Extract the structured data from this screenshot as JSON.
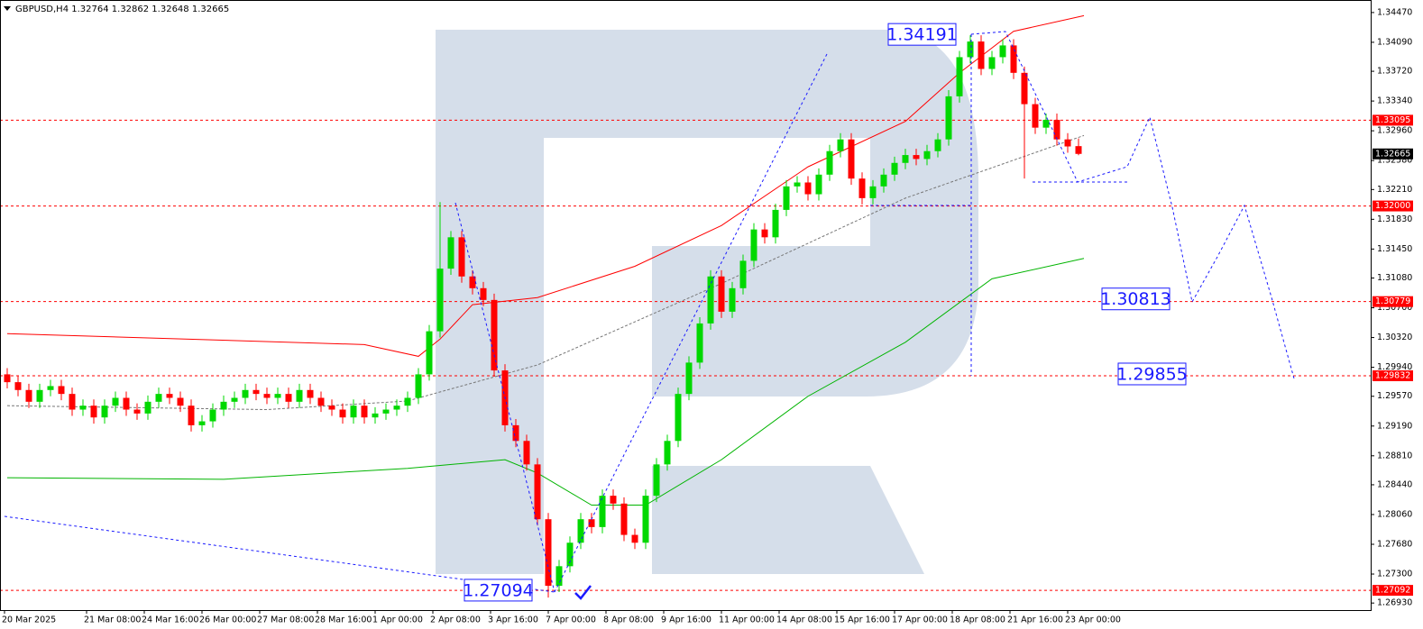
{
  "chart_data": {
    "type": "candlestick",
    "title": "GBPUSD,H4  1.32764 1.32862 1.32648 1.32665",
    "up_color": "#00d800",
    "down_color": "#ff0000",
    "ylim": [
      1.2684,
      1.3463
    ],
    "yticks": [
      {
        "value": 1.3447,
        "label": "1.34470"
      },
      {
        "value": 1.3409,
        "label": "1.34090"
      },
      {
        "value": 1.3372,
        "label": "1.33720"
      },
      {
        "value": 1.3334,
        "label": "1.33340"
      },
      {
        "value": 1.3296,
        "label": "1.32960"
      },
      {
        "value": 1.3258,
        "label": "1.32580"
      },
      {
        "value": 1.3221,
        "label": "1.32210"
      },
      {
        "value": 1.3183,
        "label": "1.31830"
      },
      {
        "value": 1.3145,
        "label": "1.31450"
      },
      {
        "value": 1.3108,
        "label": "1.31080"
      },
      {
        "value": 1.307,
        "label": "1.30700"
      },
      {
        "value": 1.3032,
        "label": "1.30320"
      },
      {
        "value": 1.2994,
        "label": "1.29940"
      },
      {
        "value": 1.2957,
        "label": "1.29570"
      },
      {
        "value": 1.2919,
        "label": "1.29190"
      },
      {
        "value": 1.2881,
        "label": "1.28810"
      },
      {
        "value": 1.2844,
        "label": "1.28440"
      },
      {
        "value": 1.2806,
        "label": "1.28060"
      },
      {
        "value": 1.2768,
        "label": "1.27680"
      },
      {
        "value": 1.273,
        "label": "1.27300"
      },
      {
        "value": 1.2693,
        "label": "1.26930"
      }
    ],
    "time_labels": [
      "20 Mar 2025",
      "21 Mar 08:00",
      "24 Mar 16:00",
      "26 Mar 00:00",
      "27 Mar 08:00",
      "28 Mar 16:00",
      "1 Apr 00:00",
      "2 Apr 08:00",
      "3 Apr 16:00",
      "7 Apr 00:00",
      "8 Apr 08:00",
      "9 Apr 16:00",
      "11 Apr 00:00",
      "14 Apr 08:00",
      "15 Apr 16:00",
      "17 Apr 00:00",
      "18 Apr 08:00",
      "21 Apr 16:00",
      "23 Apr 00:00"
    ],
    "open": [
      1.2985,
      1.2975,
      1.2965,
      1.295,
      1.2965,
      1.297,
      1.296,
      1.294,
      1.2945,
      1.293,
      1.2945,
      1.2955,
      1.294,
      1.2935,
      1.295,
      1.296,
      1.2955,
      1.2945,
      1.292,
      1.2925,
      1.294,
      1.295,
      1.2955,
      1.2965,
      1.296,
      1.2955,
      1.296,
      1.295,
      1.2965,
      1.2955,
      1.2945,
      1.294,
      1.293,
      1.2945,
      1.293,
      1.2935,
      1.294,
      1.2945,
      1.2955,
      1.2985,
      1.304,
      1.312,
      1.316,
      1.311,
      1.3095,
      1.308,
      1.299,
      1.292,
      1.29,
      1.287,
      1.28,
      1.2715,
      1.274,
      1.277,
      1.28,
      1.279,
      1.283,
      1.282,
      1.278,
      1.277,
      1.283,
      1.287,
      1.29,
      1.296,
      1.3,
      1.305,
      1.311,
      1.3065,
      1.3095,
      1.313,
      1.317,
      1.316,
      1.3195,
      1.3225,
      1.323,
      1.3215,
      1.324,
      1.327,
      1.3285,
      1.3235,
      1.321,
      1.3225,
      1.324,
      1.3255,
      1.3265,
      1.326,
      1.327,
      1.3285,
      1.334,
      1.339,
      1.341,
      1.3375,
      1.339,
      1.3405,
      1.337,
      1.333,
      1.33,
      1.331,
      1.3285,
      1.32764
    ],
    "high": [
      1.2993,
      1.2983,
      1.2973,
      1.2973,
      1.2978,
      1.2978,
      1.2968,
      1.2953,
      1.2953,
      1.2953,
      1.2963,
      1.2963,
      1.2948,
      1.2958,
      1.2968,
      1.2968,
      1.2963,
      1.2953,
      1.2933,
      1.2948,
      1.2958,
      1.2963,
      1.2973,
      1.2973,
      1.2968,
      1.2968,
      1.2968,
      1.2973,
      1.2973,
      1.2963,
      1.2953,
      1.2948,
      1.2953,
      1.2953,
      1.2943,
      1.2948,
      1.2953,
      1.2963,
      1.2993,
      1.3048,
      1.3205,
      1.3168,
      1.3168,
      1.3118,
      1.3103,
      1.3088,
      1.2998,
      1.2928,
      1.2908,
      1.2878,
      1.2808,
      1.2748,
      1.2778,
      1.2808,
      1.2808,
      1.2838,
      1.2838,
      1.2828,
      1.2788,
      1.2838,
      1.2878,
      1.2908,
      1.2968,
      1.3008,
      1.3058,
      1.3118,
      1.3118,
      1.3103,
      1.3138,
      1.3178,
      1.3178,
      1.3203,
      1.3233,
      1.3238,
      1.3238,
      1.3248,
      1.3278,
      1.3293,
      1.3293,
      1.3243,
      1.3233,
      1.3248,
      1.3263,
      1.3273,
      1.3273,
      1.3278,
      1.3293,
      1.3348,
      1.3398,
      1.3418,
      1.3418,
      1.3398,
      1.3413,
      1.3413,
      1.3378,
      1.3338,
      1.3318,
      1.3318,
      1.3293,
      1.32862
    ],
    "low": [
      1.2967,
      1.2957,
      1.2942,
      1.2942,
      1.2957,
      1.2952,
      1.2932,
      1.2932,
      1.2922,
      1.2922,
      1.2937,
      1.2932,
      1.2927,
      1.2927,
      1.2942,
      1.2947,
      1.2937,
      1.2912,
      1.2912,
      1.2917,
      1.2932,
      1.2942,
      1.2947,
      1.2952,
      1.2947,
      1.2947,
      1.2942,
      1.2942,
      1.2947,
      1.2937,
      1.2932,
      1.2922,
      1.2922,
      1.2922,
      1.2922,
      1.2927,
      1.2932,
      1.2937,
      1.2947,
      1.2977,
      1.3032,
      1.3112,
      1.3102,
      1.3087,
      1.3072,
      1.2982,
      1.2912,
      1.2892,
      1.2862,
      1.2792,
      1.27,
      1.2707,
      1.2732,
      1.2762,
      1.2782,
      1.2782,
      1.2812,
      1.2772,
      1.2762,
      1.2762,
      1.2822,
      1.2862,
      1.2892,
      1.2952,
      1.2992,
      1.3042,
      1.3057,
      1.3057,
      1.3087,
      1.3122,
      1.3152,
      1.3152,
      1.3187,
      1.3217,
      1.3207,
      1.3207,
      1.3232,
      1.3262,
      1.3227,
      1.3202,
      1.3202,
      1.3217,
      1.3232,
      1.3247,
      1.3252,
      1.3252,
      1.3262,
      1.3277,
      1.3332,
      1.3382,
      1.3367,
      1.3367,
      1.3382,
      1.3362,
      1.3235,
      1.3292,
      1.3292,
      1.3277,
      1.3268,
      1.32648
    ],
    "close": [
      1.2975,
      1.2965,
      1.295,
      1.2965,
      1.297,
      1.296,
      1.294,
      1.2945,
      1.293,
      1.2945,
      1.2955,
      1.294,
      1.2935,
      1.295,
      1.296,
      1.2955,
      1.2945,
      1.292,
      1.2925,
      1.294,
      1.295,
      1.2955,
      1.2965,
      1.296,
      1.2955,
      1.296,
      1.295,
      1.2965,
      1.2955,
      1.2945,
      1.294,
      1.293,
      1.2945,
      1.293,
      1.2935,
      1.294,
      1.2945,
      1.2955,
      1.2985,
      1.304,
      1.312,
      1.316,
      1.311,
      1.3095,
      1.308,
      1.299,
      1.292,
      1.29,
      1.287,
      1.28,
      1.2715,
      1.274,
      1.277,
      1.28,
      1.279,
      1.283,
      1.282,
      1.278,
      1.277,
      1.283,
      1.287,
      1.29,
      1.296,
      1.3,
      1.305,
      1.311,
      1.3065,
      1.3095,
      1.313,
      1.317,
      1.316,
      1.3195,
      1.3225,
      1.323,
      1.3215,
      1.324,
      1.327,
      1.3285,
      1.3235,
      1.321,
      1.3225,
      1.324,
      1.3255,
      1.3265,
      1.326,
      1.327,
      1.3285,
      1.334,
      1.339,
      1.341,
      1.3375,
      1.339,
      1.3405,
      1.337,
      1.333,
      1.33,
      1.331,
      1.3285,
      1.3276,
      1.32665
    ],
    "indicators": [
      {
        "color": "#ff0000",
        "dashed": false,
        "x": [
          0,
          33,
          38,
          40,
          43,
          49,
          58,
          66,
          74,
          83,
          88,
          93,
          99.5
        ],
        "values": [
          1.3037,
          1.3023,
          1.3008,
          1.303,
          1.3074,
          1.3083,
          1.3123,
          1.3175,
          1.325,
          1.3308,
          1.337,
          1.3423,
          1.3443
        ]
      },
      {
        "color": "#00b400",
        "dashed": false,
        "x": [
          0,
          20,
          37,
          46,
          49,
          54,
          59,
          66,
          74,
          83,
          91,
          99.5
        ],
        "values": [
          1.2853,
          1.2851,
          1.2865,
          1.2876,
          1.2859,
          1.2818,
          1.2818,
          1.2876,
          1.2957,
          1.3026,
          1.3107,
          1.3133
        ]
      },
      {
        "color": "#777777",
        "dashed": true,
        "x": [
          0,
          24,
          37,
          49,
          66,
          83,
          99.5
        ],
        "values": [
          1.2945,
          1.294,
          1.2951,
          1.2997,
          1.3101,
          1.321,
          1.329
        ]
      }
    ],
    "hlines": [
      1.33095,
      {
        "value": 1.32,
        "label": "1.32000"
      },
      1.30779,
      1.29832,
      1.27092
    ],
    "current_price": 1.32665,
    "annotations": [
      1.34191,
      1.30813,
      1.29855,
      1.27094
    ]
  }
}
